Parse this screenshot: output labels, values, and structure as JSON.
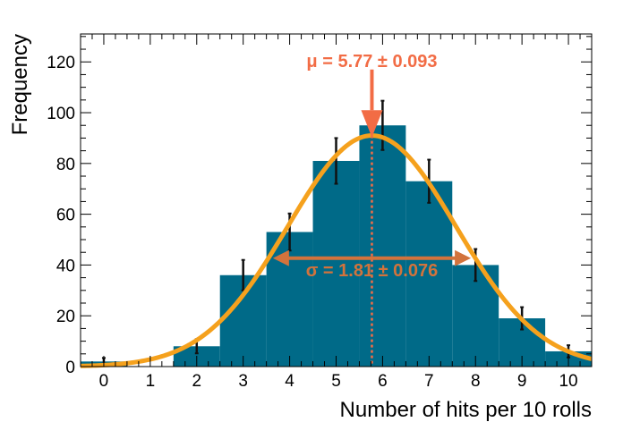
{
  "chart_data": {
    "type": "bar",
    "title": "",
    "xlabel": "Number of hits per 10 rolls",
    "ylabel": "Frequency",
    "xlim": [
      -0.5,
      10.5
    ],
    "ylim": [
      0,
      131
    ],
    "x_ticks": [
      0,
      1,
      2,
      3,
      4,
      5,
      6,
      7,
      8,
      9,
      10
    ],
    "y_ticks": [
      0,
      20,
      40,
      60,
      80,
      100,
      120
    ],
    "grid": false,
    "series": [
      {
        "kind": "histogram",
        "x": [
          0,
          1,
          2,
          3,
          4,
          5,
          6,
          7,
          8,
          9,
          10
        ],
        "values": [
          2,
          0,
          8,
          36,
          53,
          81,
          95,
          73,
          40,
          19,
          6
        ],
        "errors": [
          1.4,
          0,
          2.8,
          6.0,
          7.3,
          9.0,
          9.7,
          8.5,
          6.3,
          4.4,
          2.4
        ],
        "color": "#006a88"
      },
      {
        "kind": "gaussian-fit",
        "mean": 5.77,
        "sigma": 1.81,
        "amplitude": 91,
        "color": "#f5a11d"
      }
    ],
    "annotations": {
      "mu_symbol": "μ",
      "mu_text": " = 5.77 ± 0.093",
      "mu_color": "#f26c45",
      "sigma_symbol": "σ",
      "sigma_text": " = 1.81 ± 0.076",
      "sigma_color": "#d2733c"
    }
  }
}
